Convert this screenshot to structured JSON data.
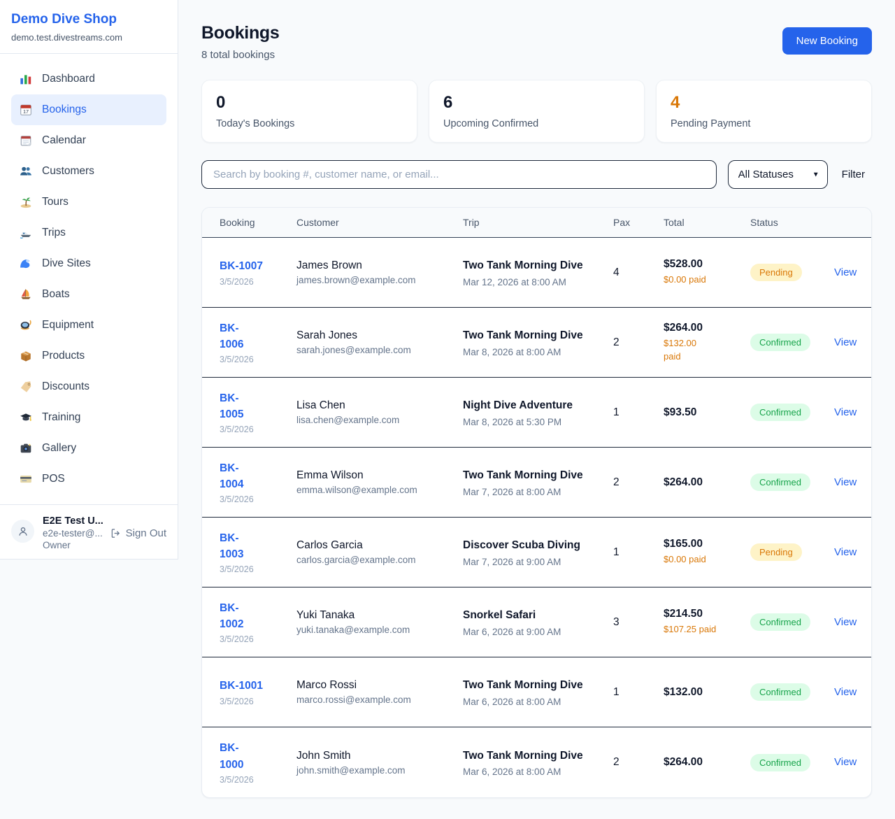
{
  "sidebar": {
    "brand": {
      "name": "Demo Dive Shop",
      "domain": "demo.test.divestreams.com"
    },
    "nav": [
      {
        "label": "Dashboard",
        "icon": "dashboard-icon",
        "active": false
      },
      {
        "label": "Bookings",
        "icon": "bookings-icon",
        "active": true
      },
      {
        "label": "Calendar",
        "icon": "calendar-icon",
        "active": false
      },
      {
        "label": "Customers",
        "icon": "customers-icon",
        "active": false
      },
      {
        "label": "Tours",
        "icon": "tours-icon",
        "active": false
      },
      {
        "label": "Trips",
        "icon": "trips-icon",
        "active": false
      },
      {
        "label": "Dive Sites",
        "icon": "dive-sites-icon",
        "active": false
      },
      {
        "label": "Boats",
        "icon": "boats-icon",
        "active": false
      },
      {
        "label": "Equipment",
        "icon": "equipment-icon",
        "active": false
      },
      {
        "label": "Products",
        "icon": "products-icon",
        "active": false
      },
      {
        "label": "Discounts",
        "icon": "discounts-icon",
        "active": false
      },
      {
        "label": "Training",
        "icon": "training-icon",
        "active": false
      },
      {
        "label": "Gallery",
        "icon": "gallery-icon",
        "active": false
      },
      {
        "label": "POS",
        "icon": "pos-icon",
        "active": false
      }
    ],
    "user": {
      "name": "E2E Test U...",
      "email": "e2e-tester@...",
      "role": "Owner",
      "sign_out_label": "Sign Out"
    }
  },
  "header": {
    "title": "Bookings",
    "subtitle": "8 total bookings",
    "new_booking_label": "New Booking"
  },
  "stats": [
    {
      "value": "0",
      "label": "Today's Bookings",
      "value_color": "#0f172a"
    },
    {
      "value": "6",
      "label": "Upcoming Confirmed",
      "value_color": "#0f172a"
    },
    {
      "value": "4",
      "label": "Pending Payment",
      "value_color": "#d97706"
    }
  ],
  "filters": {
    "search_placeholder": "Search by booking #, customer name, or email...",
    "status_selected": "All Statuses",
    "filter_label": "Filter"
  },
  "table": {
    "columns": [
      "Booking",
      "Customer",
      "Trip",
      "Pax",
      "Total",
      "Status"
    ],
    "rows": [
      {
        "id": "BK-1007",
        "date": "3/5/2026",
        "customer": "James Brown",
        "email": "james.brown@example.com",
        "trip": "Two Tank Morning Dive",
        "trip_datetime": "Mar 12, 2026 at 8:00 AM",
        "pax": "4",
        "total": "$528.00",
        "paid": "$0.00 paid",
        "status": "Pending",
        "action": "View"
      },
      {
        "id": "BK-\n1006",
        "date": "3/5/2026",
        "customer": "Sarah Jones",
        "email": "sarah.jones@example.com",
        "trip": "Two Tank Morning Dive",
        "trip_datetime": "Mar 8, 2026 at 8:00 AM",
        "pax": "2",
        "total": "$264.00",
        "paid": "$132.00\npaid",
        "status": "Confirmed",
        "action": "View"
      },
      {
        "id": "BK-\n1005",
        "date": "3/5/2026",
        "customer": "Lisa Chen",
        "email": "lisa.chen@example.com",
        "trip": "Night Dive Adventure",
        "trip_datetime": "Mar 8, 2026 at 5:30 PM",
        "pax": "1",
        "total": "$93.50",
        "paid": "",
        "status": "Confirmed",
        "action": "View"
      },
      {
        "id": "BK-\n1004",
        "date": "3/5/2026",
        "customer": "Emma Wilson",
        "email": "emma.wilson@example.com",
        "trip": "Two Tank Morning Dive",
        "trip_datetime": "Mar 7, 2026 at 8:00 AM",
        "pax": "2",
        "total": "$264.00",
        "paid": "",
        "status": "Confirmed",
        "action": "View"
      },
      {
        "id": "BK-\n1003",
        "date": "3/5/2026",
        "customer": "Carlos Garcia",
        "email": "carlos.garcia@example.com",
        "trip": "Discover Scuba Diving",
        "trip_datetime": "Mar 7, 2026 at 9:00 AM",
        "pax": "1",
        "total": "$165.00",
        "paid": "$0.00 paid",
        "status": "Pending",
        "action": "View"
      },
      {
        "id": "BK-\n1002",
        "date": "3/5/2026",
        "customer": "Yuki Tanaka",
        "email": "yuki.tanaka@example.com",
        "trip": "Snorkel Safari",
        "trip_datetime": "Mar 6, 2026 at 9:00 AM",
        "pax": "3",
        "total": "$214.50",
        "paid": "$107.25 paid",
        "status": "Confirmed",
        "action": "View"
      },
      {
        "id": "BK-1001",
        "date": "3/5/2026",
        "customer": "Marco Rossi",
        "email": "marco.rossi@example.com",
        "trip": "Two Tank Morning Dive",
        "trip_datetime": "Mar 6, 2026 at 8:00 AM",
        "pax": "1",
        "total": "$132.00",
        "paid": "",
        "status": "Confirmed",
        "action": "View"
      },
      {
        "id": "BK-\n1000",
        "date": "3/5/2026",
        "customer": "John Smith",
        "email": "john.smith@example.com",
        "trip": "Two Tank Morning Dive",
        "trip_datetime": "Mar 6, 2026 at 8:00 AM",
        "pax": "2",
        "total": "$264.00",
        "paid": "",
        "status": "Confirmed",
        "action": "View"
      }
    ]
  },
  "colors": {
    "accent": "#2563eb",
    "pending_text": "#d97706",
    "pending_bg": "#fef3c7",
    "confirmed_text": "#16a34a",
    "confirmed_bg": "#dcfce7",
    "paid_text": "#d97706"
  }
}
